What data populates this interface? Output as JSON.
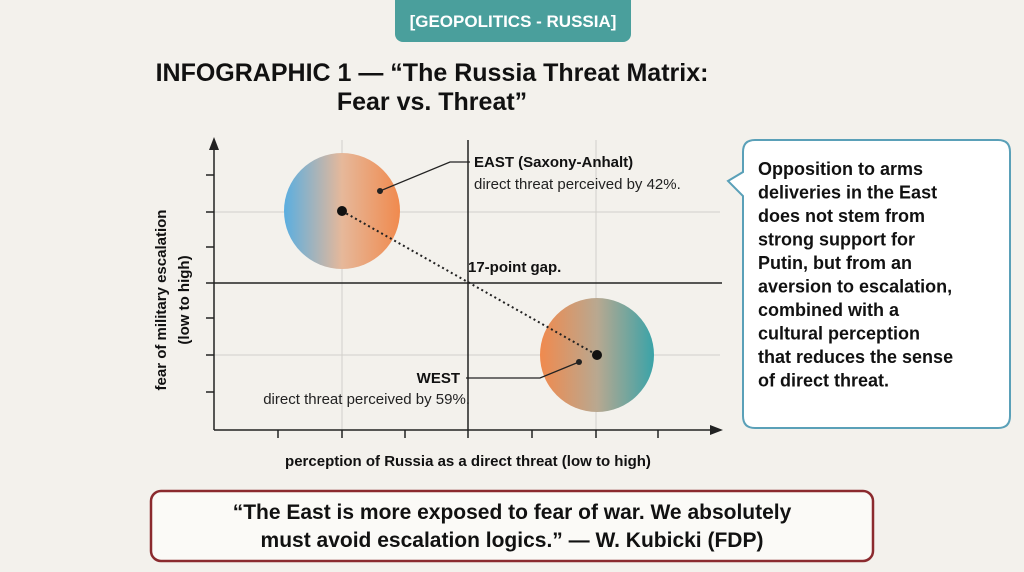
{
  "badge": "[GEOPOLITICS - RUSSIA]",
  "title": [
    "INFOGRAPHIC 1 — “The Russia Threat Matrix:",
    "Fear vs. Threat”"
  ],
  "matrix": {
    "east": {
      "label": "EAST (Saxony-Anhalt)",
      "note": "direct threat perceived by 42%."
    },
    "west": {
      "label": "WEST",
      "note": "direct threat perceived by 59%."
    },
    "gap": "17-point gap.",
    "y_axis": [
      "fear of military escalation",
      "(low to high)"
    ],
    "x_axis": "perception of Russia as a direct threat (low to high)"
  },
  "callout": [
    "Opposition to arms",
    "deliveries in the East",
    "does not stem from",
    "strong support for",
    "Putin, but from an",
    "aversion to escalation,",
    "combined with a",
    "cultural perception",
    "that reduces the sense",
    "of direct threat."
  ],
  "quote": [
    "“The East is more exposed to fear of war. We absolutely",
    "must avoid escalation logics.” — W. Kubicki (FDP)"
  ]
}
